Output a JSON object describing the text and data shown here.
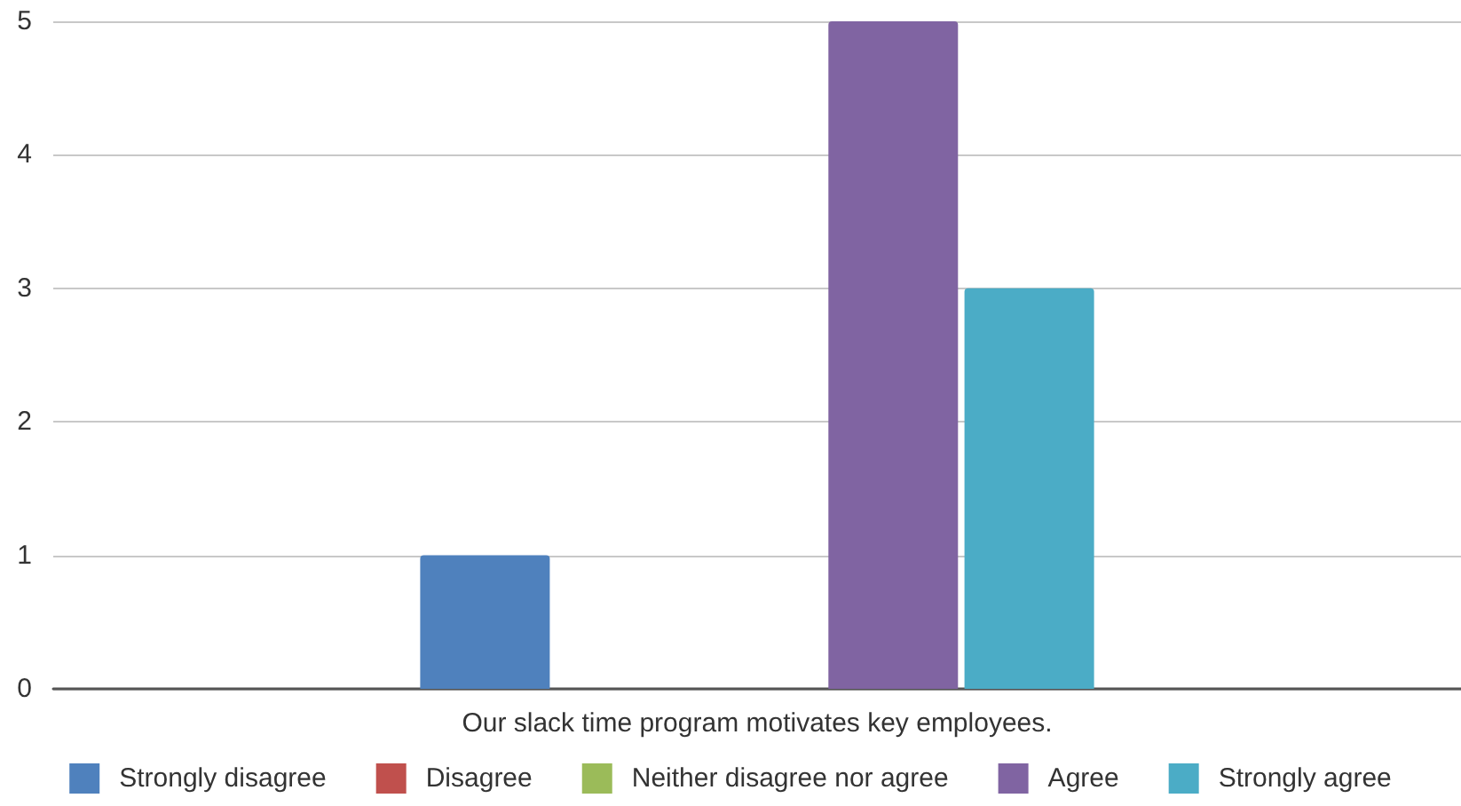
{
  "chart_data": {
    "type": "bar",
    "categories": [
      "Our slack time program motivates key employees."
    ],
    "series": [
      {
        "name": "Strongly disagree",
        "color": "#4f81bd",
        "values": [
          1
        ]
      },
      {
        "name": "Disagree",
        "color": "#c0504d",
        "values": [
          0
        ]
      },
      {
        "name": "Neither disagree nor agree",
        "color": "#9bbb59",
        "values": [
          0
        ]
      },
      {
        "name": "Agree",
        "color": "#8064a2",
        "values": [
          5
        ]
      },
      {
        "name": "Strongly agree",
        "color": "#4bacc6",
        "values": [
          3
        ]
      }
    ],
    "ylim": [
      0,
      5
    ],
    "yticks": [
      0,
      1,
      2,
      3,
      4,
      5
    ],
    "grid": "y",
    "legend": "bottom"
  }
}
